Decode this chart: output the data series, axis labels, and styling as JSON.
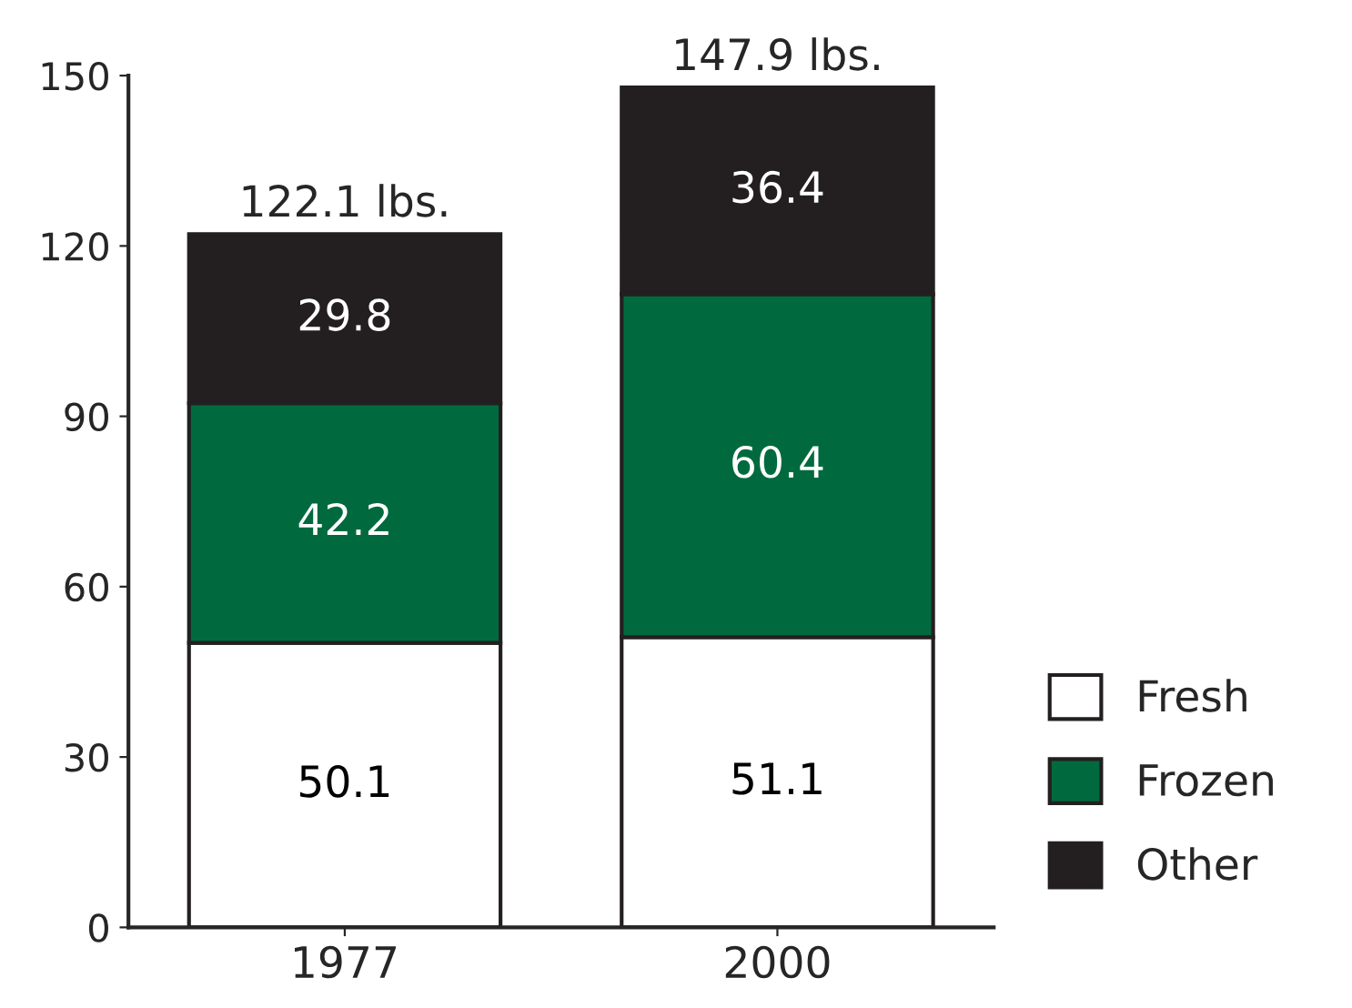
{
  "chart_data": {
    "type": "bar",
    "stacked": true,
    "categories": [
      "1977",
      "2000"
    ],
    "series": [
      {
        "name": "Fresh",
        "color": "#ffffff",
        "values": [
          50.1,
          51.1
        ]
      },
      {
        "name": "Frozen",
        "color": "#006a3e",
        "values": [
          42.2,
          60.4
        ]
      },
      {
        "name": "Other",
        "color": "#231f20",
        "values": [
          29.8,
          36.4
        ]
      }
    ],
    "ylim": [
      0,
      150
    ],
    "yticks": [
      0,
      30,
      60,
      90,
      120,
      150
    ],
    "data_labels": true,
    "totals": [
      "122.1 lbs.",
      "147.9 lbs."
    ],
    "legend": "bottom right",
    "grid": false
  }
}
